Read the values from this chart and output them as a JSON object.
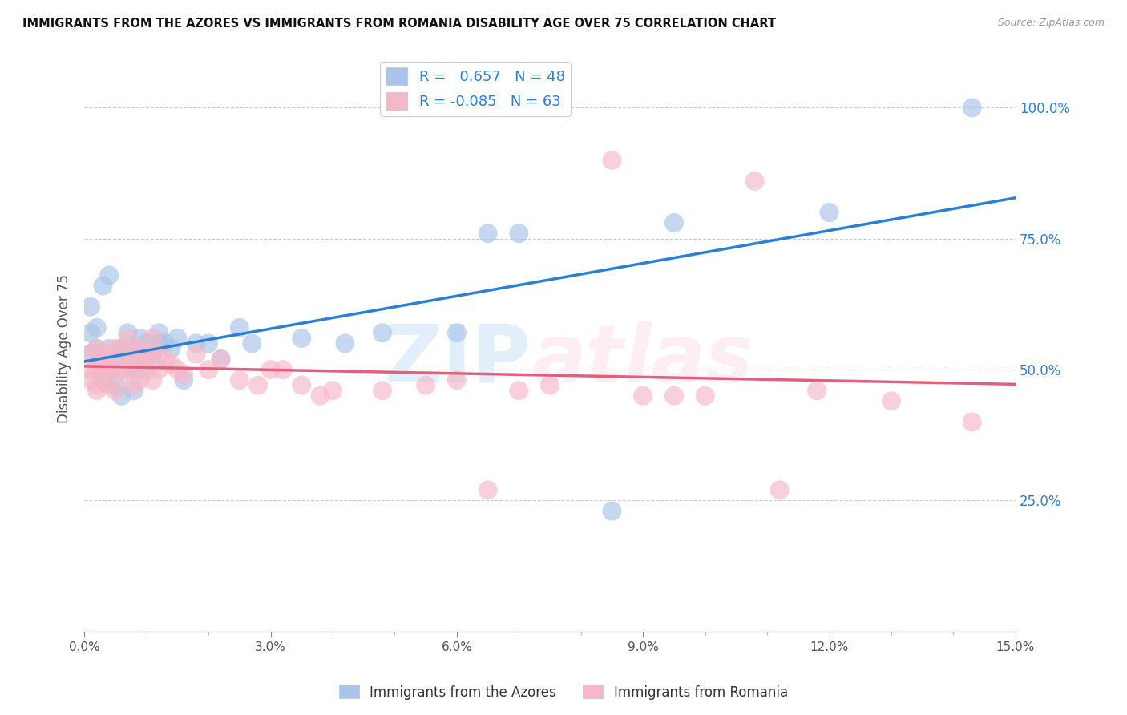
{
  "title": "IMMIGRANTS FROM THE AZORES VS IMMIGRANTS FROM ROMANIA DISABILITY AGE OVER 75 CORRELATION CHART",
  "source": "Source: ZipAtlas.com",
  "ylabel": "Disability Age Over 75",
  "legend_label_blue": "Immigrants from the Azores",
  "legend_label_pink": "Immigrants from Romania",
  "R_blue": 0.657,
  "N_blue": 48,
  "R_pink": -0.085,
  "N_pink": 63,
  "xlim": [
    0.0,
    0.15
  ],
  "ylim": [
    0.0,
    1.08
  ],
  "xtick_labels": [
    "0.0%",
    "",
    "",
    "",
    "",
    "",
    "",
    "",
    "",
    "3.0%",
    "",
    "",
    "",
    "",
    "",
    "",
    "",
    "",
    "6.0%",
    "",
    "",
    "",
    "",
    "",
    "",
    "",
    "",
    "9.0%",
    "",
    "",
    "",
    "",
    "",
    "",
    "",
    "",
    "12.0%",
    "",
    "",
    "",
    "",
    "",
    "",
    "",
    "",
    "15.0%"
  ],
  "xtick_values": [
    0.0,
    0.15
  ],
  "ytick_labels": [
    "25.0%",
    "50.0%",
    "75.0%",
    "100.0%"
  ],
  "ytick_values": [
    0.25,
    0.5,
    0.75,
    1.0
  ],
  "blue_color": "#a8c4e8",
  "pink_color": "#f5b8c8",
  "line_blue": "#2b7fd4",
  "line_pink": "#e06080",
  "watermark": "ZIPatlas",
  "watermark_blue": "#d0e4f7",
  "watermark_pink": "#fce4ec",
  "blue_x": [
    0.001,
    0.001,
    0.001,
    0.002,
    0.002,
    0.002,
    0.003,
    0.003,
    0.003,
    0.004,
    0.004,
    0.004,
    0.005,
    0.005,
    0.006,
    0.006,
    0.006,
    0.007,
    0.007,
    0.008,
    0.008,
    0.008,
    0.009,
    0.009,
    0.01,
    0.01,
    0.011,
    0.012,
    0.012,
    0.013,
    0.014,
    0.015,
    0.016,
    0.018,
    0.02,
    0.022,
    0.025,
    0.027,
    0.035,
    0.042,
    0.048,
    0.06,
    0.065,
    0.07,
    0.085,
    0.095,
    0.12,
    0.143
  ],
  "blue_y": [
    0.53,
    0.57,
    0.62,
    0.5,
    0.54,
    0.58,
    0.48,
    0.52,
    0.66,
    0.5,
    0.54,
    0.68,
    0.47,
    0.52,
    0.45,
    0.5,
    0.54,
    0.53,
    0.57,
    0.46,
    0.5,
    0.54,
    0.5,
    0.56,
    0.52,
    0.55,
    0.53,
    0.55,
    0.57,
    0.55,
    0.54,
    0.56,
    0.48,
    0.55,
    0.55,
    0.52,
    0.58,
    0.55,
    0.56,
    0.55,
    0.57,
    0.57,
    0.76,
    0.76,
    0.23,
    0.78,
    0.8,
    1.0
  ],
  "pink_x": [
    0.001,
    0.001,
    0.001,
    0.002,
    0.002,
    0.002,
    0.002,
    0.003,
    0.003,
    0.003,
    0.004,
    0.004,
    0.004,
    0.005,
    0.005,
    0.005,
    0.006,
    0.006,
    0.007,
    0.007,
    0.007,
    0.008,
    0.008,
    0.008,
    0.009,
    0.009,
    0.009,
    0.01,
    0.01,
    0.011,
    0.011,
    0.011,
    0.012,
    0.012,
    0.013,
    0.014,
    0.015,
    0.016,
    0.018,
    0.02,
    0.022,
    0.025,
    0.028,
    0.03,
    0.032,
    0.035,
    0.038,
    0.04,
    0.048,
    0.055,
    0.06,
    0.065,
    0.07,
    0.075,
    0.085,
    0.09,
    0.095,
    0.1,
    0.108,
    0.112,
    0.118,
    0.13,
    0.143
  ],
  "pink_y": [
    0.5,
    0.53,
    0.48,
    0.47,
    0.51,
    0.54,
    0.46,
    0.5,
    0.53,
    0.48,
    0.5,
    0.53,
    0.47,
    0.46,
    0.5,
    0.54,
    0.5,
    0.54,
    0.49,
    0.52,
    0.56,
    0.47,
    0.51,
    0.54,
    0.48,
    0.51,
    0.54,
    0.5,
    0.53,
    0.48,
    0.52,
    0.56,
    0.5,
    0.53,
    0.52,
    0.51,
    0.5,
    0.49,
    0.53,
    0.5,
    0.52,
    0.48,
    0.47,
    0.5,
    0.5,
    0.47,
    0.45,
    0.46,
    0.46,
    0.47,
    0.48,
    0.27,
    0.46,
    0.47,
    0.9,
    0.45,
    0.45,
    0.45,
    0.86,
    0.27,
    0.46,
    0.44,
    0.4
  ]
}
